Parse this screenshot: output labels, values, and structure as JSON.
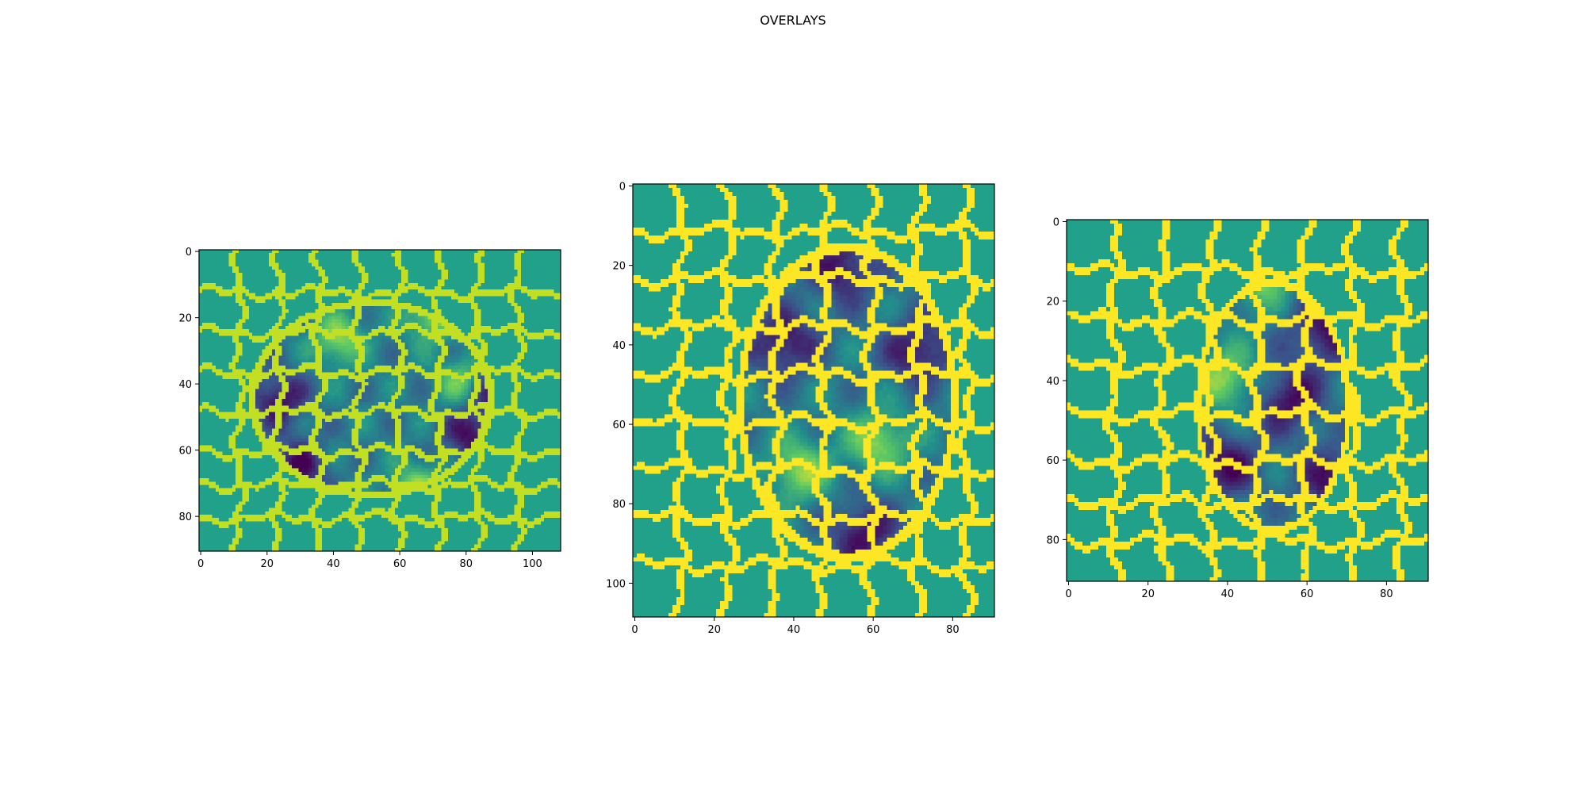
{
  "figure": {
    "title": "OVERLAYS"
  },
  "colors": {
    "background_segment": "#21a08a",
    "boundary": "#fde725",
    "boundary_light": "#c2df23",
    "colormap": [
      "#440154",
      "#3b528b",
      "#21918c",
      "#5ec962",
      "#fde725"
    ]
  },
  "chart_data": [
    {
      "type": "heatmap",
      "image_shape": [
        91,
        109
      ],
      "xlim": [
        0,
        109
      ],
      "ylim": [
        91,
        0
      ],
      "xticks": [
        0,
        20,
        40,
        60,
        80,
        100
      ],
      "yticks": [
        0,
        20,
        40,
        60,
        80
      ],
      "xtick_labels": [
        "0",
        "20",
        "40",
        "60",
        "80",
        "100"
      ],
      "ytick_labels": [
        "0",
        "20",
        "40",
        "60",
        "80"
      ],
      "boundary_color": "boundary_light",
      "blob": {
        "center": [
          52,
          45
        ],
        "radius": [
          36,
          29
        ]
      },
      "dark_spots": [
        [
          24,
          45
        ],
        [
          88,
          42
        ],
        [
          30,
          66
        ],
        [
          82,
          56
        ]
      ],
      "bright_spots": [
        [
          70,
          20
        ],
        [
          80,
          40
        ],
        [
          66,
          72
        ],
        [
          42,
          27
        ]
      ],
      "grid_x": [
        12,
        24,
        36,
        48,
        60,
        72,
        84,
        96
      ],
      "grid_y": [
        13,
        25,
        37,
        49,
        61,
        71,
        81
      ]
    },
    {
      "type": "heatmap",
      "image_shape": [
        109,
        91
      ],
      "xlim": [
        0,
        91
      ],
      "ylim": [
        109,
        0
      ],
      "xticks": [
        0,
        20,
        40,
        60,
        80
      ],
      "yticks": [
        0,
        20,
        40,
        60,
        80,
        100
      ],
      "xtick_labels": [
        "0",
        "20",
        "40",
        "60",
        "80"
      ],
      "ytick_labels": [
        "0",
        "20",
        "40",
        "60",
        "80",
        "100"
      ],
      "boundary_color": "boundary",
      "blob": {
        "center": [
          54,
          55
        ],
        "radius": [
          27,
          39
        ]
      },
      "dark_spots": [
        [
          53,
          21
        ],
        [
          58,
          88
        ],
        [
          72,
          42
        ],
        [
          38,
          40
        ]
      ],
      "bright_spots": [
        [
          62,
          65
        ],
        [
          42,
          72
        ]
      ],
      "grid_x": [
        12,
        24,
        36,
        48,
        60,
        72,
        84
      ],
      "grid_y": [
        12,
        24,
        36,
        48,
        60,
        72,
        84,
        96
      ]
    },
    {
      "type": "heatmap",
      "image_shape": [
        91,
        91
      ],
      "xlim": [
        0,
        91
      ],
      "ylim": [
        91,
        0
      ],
      "xticks": [
        0,
        20,
        40,
        60,
        80
      ],
      "yticks": [
        0,
        20,
        40,
        60,
        80
      ],
      "xtick_labels": [
        "0",
        "20",
        "40",
        "60",
        "80"
      ],
      "ytick_labels": [
        "0",
        "20",
        "40",
        "60",
        "80"
      ],
      "boundary_color": "boundary",
      "blob": {
        "center": [
          52,
          47
        ],
        "radius": [
          19,
          31
        ]
      },
      "dark_spots": [
        [
          67,
          66
        ],
        [
          65,
          28
        ],
        [
          56,
          45
        ],
        [
          40,
          62
        ]
      ],
      "bright_spots": [
        [
          48,
          14
        ],
        [
          40,
          40
        ]
      ],
      "grid_x": [
        12,
        24,
        36,
        48,
        60,
        72,
        84
      ],
      "grid_y": [
        13,
        25,
        37,
        49,
        61,
        71,
        81
      ]
    }
  ]
}
